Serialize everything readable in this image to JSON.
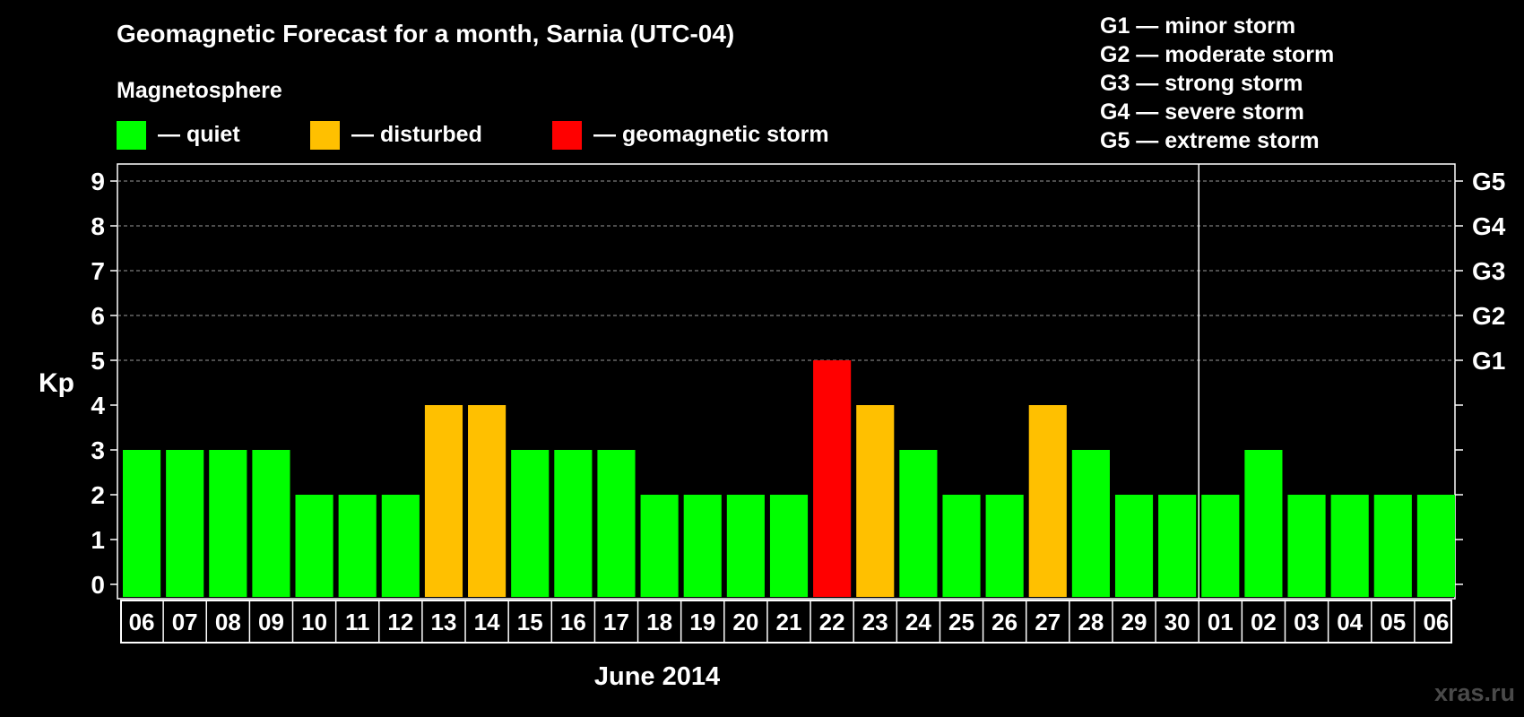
{
  "title": "Geomagnetic Forecast for a month, Sarnia (UTC-04)",
  "legend": {
    "heading": "Magnetosphere",
    "items": [
      {
        "label": "— quiet",
        "color": "#00ff00"
      },
      {
        "label": "— disturbed",
        "color": "#ffc000"
      },
      {
        "label": "— geomagnetic storm",
        "color": "#ff0000"
      }
    ]
  },
  "storm_scale": [
    "G1 — minor storm",
    "G2 — moderate storm",
    "G3 — strong storm",
    "G4 — severe storm",
    "G5 — extreme storm"
  ],
  "watermark": "xras.ru",
  "chart_data": {
    "type": "bar",
    "title": "Geomagnetic Forecast for a month, Sarnia (UTC-04)",
    "xlabel": "June 2014",
    "ylabel": "Kp",
    "ylim": [
      0,
      9
    ],
    "yticks": [
      "0",
      "1",
      "2",
      "3",
      "4",
      "5",
      "6",
      "7",
      "8",
      "9"
    ],
    "right_axis_labels": [
      {
        "kp": 5,
        "label": "G1"
      },
      {
        "kp": 6,
        "label": "G2"
      },
      {
        "kp": 7,
        "label": "G3"
      },
      {
        "kp": 8,
        "label": "G4"
      },
      {
        "kp": 9,
        "label": "G5"
      }
    ],
    "grid": "dashed horizontal lines at Kp 5–9",
    "month_divider_after_index": 24,
    "categories": [
      "06",
      "07",
      "08",
      "09",
      "10",
      "11",
      "12",
      "13",
      "14",
      "15",
      "16",
      "17",
      "18",
      "19",
      "20",
      "21",
      "22",
      "23",
      "24",
      "25",
      "26",
      "27",
      "28",
      "29",
      "30",
      "01",
      "02",
      "03",
      "04",
      "05",
      "06"
    ],
    "values": [
      3,
      3,
      3,
      3,
      2,
      2,
      2,
      4,
      4,
      3,
      3,
      3,
      2,
      2,
      2,
      2,
      5,
      4,
      3,
      2,
      2,
      4,
      3,
      2,
      2,
      2,
      3,
      2,
      2,
      2,
      2
    ],
    "colors": {
      "quiet": "#00ff00",
      "disturbed": "#ffc000",
      "storm": "#ff0000"
    }
  }
}
